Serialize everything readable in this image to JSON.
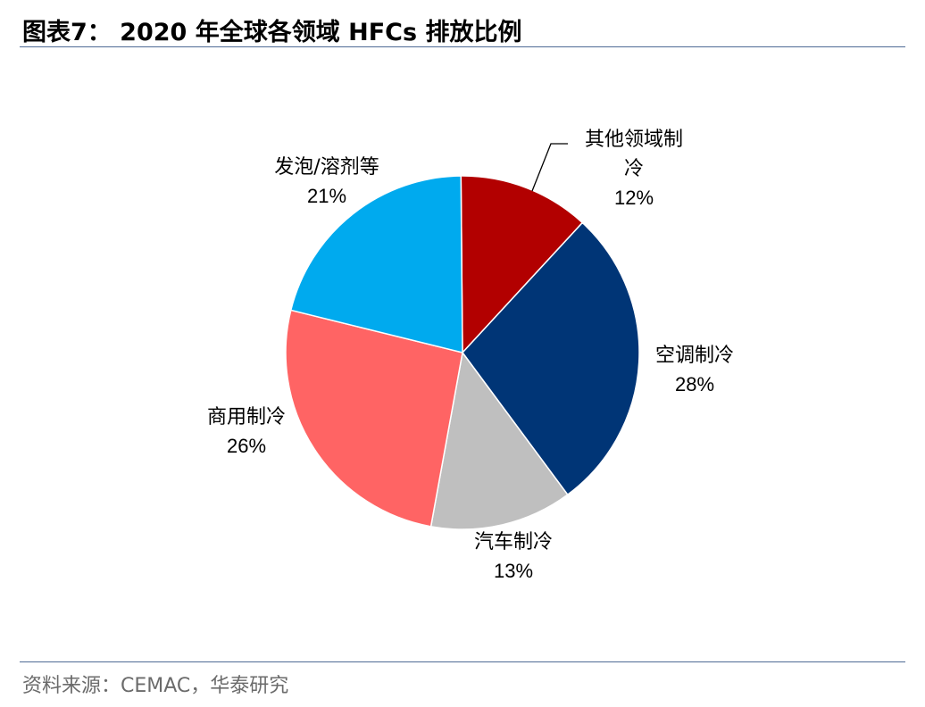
{
  "header": {
    "title": "图表7： 2020 年全球各领域 HFCs 排放比例"
  },
  "footer": {
    "source": "资料来源：CEMAC，华泰研究"
  },
  "chart_data": {
    "type": "pie",
    "title": "图表7： 2020 年全球各领域 HFCs 排放比例",
    "slices": [
      {
        "label_lines": [
          "其他领域制",
          "冷"
        ],
        "pct_label": "12%",
        "value": 12,
        "color": "#b20000"
      },
      {
        "label_lines": [
          "空调制冷"
        ],
        "pct_label": "28%",
        "value": 28,
        "color": "#003576"
      },
      {
        "label_lines": [
          "汽车制冷"
        ],
        "pct_label": "13%",
        "value": 13,
        "color": "#bfbfbf"
      },
      {
        "label_lines": [
          "商用制冷"
        ],
        "pct_label": "26%",
        "value": 26,
        "color": "#ff6464"
      },
      {
        "label_lines": [
          "发泡/溶剂等"
        ],
        "pct_label": "21%",
        "value": 21,
        "color": "#00aaee"
      }
    ],
    "legend": "none"
  }
}
